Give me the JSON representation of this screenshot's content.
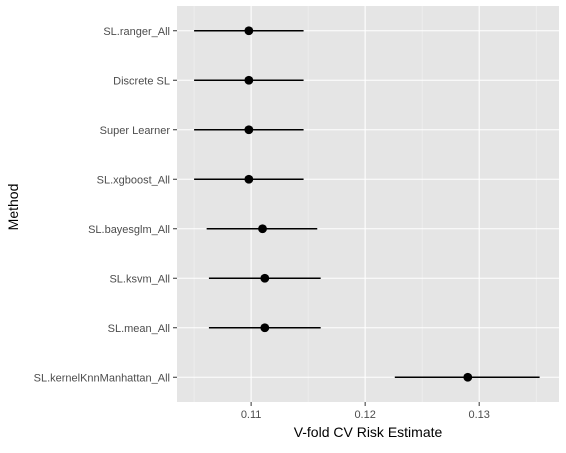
{
  "chart_data": {
    "type": "scatter",
    "subtype": "dot-whisker",
    "xlabel": "V-fold CV Risk Estimate",
    "ylabel": "Method",
    "xlim": [
      0.1035,
      0.137
    ],
    "x_ticks": [
      0.11,
      0.12,
      0.13
    ],
    "x_tick_labels": [
      "0.11",
      "0.12",
      "0.13"
    ],
    "grid": true,
    "panel_background": "#e5e5e5",
    "grid_color": "#ffffff",
    "point_color": "#000000",
    "categories": [
      "SL.ranger_All",
      "Discrete SL",
      "Super Learner",
      "SL.xgboost_All",
      "SL.bayesglm_All",
      "SL.ksvm_All",
      "SL.mean_All",
      "SL.kernelKnnManhattan_All"
    ],
    "points": [
      {
        "label": "SL.ranger_All",
        "estimate": 0.1098,
        "lower": 0.105,
        "upper": 0.1146
      },
      {
        "label": "Discrete SL",
        "estimate": 0.1098,
        "lower": 0.105,
        "upper": 0.1146
      },
      {
        "label": "Super Learner",
        "estimate": 0.1098,
        "lower": 0.105,
        "upper": 0.1146
      },
      {
        "label": "SL.xgboost_All",
        "estimate": 0.1098,
        "lower": 0.105,
        "upper": 0.1146
      },
      {
        "label": "SL.bayesglm_All",
        "estimate": 0.111,
        "lower": 0.1061,
        "upper": 0.1158
      },
      {
        "label": "SL.ksvm_All",
        "estimate": 0.1112,
        "lower": 0.1063,
        "upper": 0.1161
      },
      {
        "label": "SL.mean_All",
        "estimate": 0.1112,
        "lower": 0.1063,
        "upper": 0.1161
      },
      {
        "label": "SL.kernelKnnManhattan_All",
        "estimate": 0.129,
        "lower": 0.1226,
        "upper": 0.1353
      }
    ]
  }
}
